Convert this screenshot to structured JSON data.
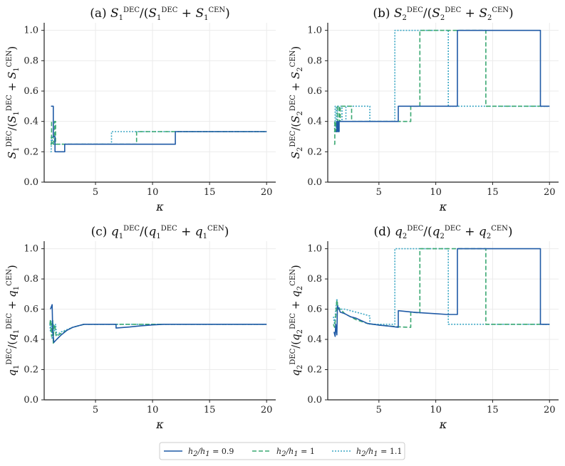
{
  "chart_data": [
    {
      "type": "line",
      "title": "(a) S1DEC/(S1DEC + S1CEN)",
      "title_parts": {
        "prefix": "(a) ",
        "sym": "S",
        "idx": "1"
      },
      "xlabel": "κ",
      "ylabel_sym": "S",
      "ylabel_idx": "1",
      "xlim": [
        0.5,
        20.8
      ],
      "ylim": [
        0,
        1.05
      ],
      "xticks": [
        5,
        10,
        15,
        20
      ],
      "yticks": [
        0.0,
        0.2,
        0.4,
        0.6,
        0.8,
        1.0
      ],
      "series": [
        {
          "name": "h2/h1 = 0.9",
          "points": [
            [
              1.1,
              0.5
            ],
            [
              1.3,
              0.5
            ],
            [
              1.3,
              0.3
            ],
            [
              1.45,
              0.3
            ],
            [
              1.45,
              0.2
            ],
            [
              2.3,
              0.2
            ],
            [
              2.3,
              0.25
            ],
            [
              12,
              0.25
            ],
            [
              12,
              0.333
            ],
            [
              20,
              0.333
            ]
          ]
        },
        {
          "name": "h2/h1 = 1",
          "points": [
            [
              1.05,
              0.25
            ],
            [
              1.15,
              0.25
            ],
            [
              1.15,
              0.4
            ],
            [
              1.3,
              0.4
            ],
            [
              1.3,
              0.25
            ],
            [
              1.42,
              0.25
            ],
            [
              1.42,
              0.4
            ],
            [
              1.5,
              0.4
            ],
            [
              1.5,
              0.25
            ],
            [
              8.6,
              0.25
            ],
            [
              8.6,
              0.333
            ],
            [
              20,
              0.333
            ]
          ]
        },
        {
          "name": "h2/h1 = 1.1",
          "points": [
            [
              1.05,
              0.2
            ],
            [
              1.12,
              0.2
            ],
            [
              1.12,
              0.3
            ],
            [
              1.22,
              0.3
            ],
            [
              1.22,
              0.25
            ],
            [
              6.4,
              0.25
            ],
            [
              6.4,
              0.333
            ],
            [
              20,
              0.333
            ]
          ]
        }
      ]
    },
    {
      "type": "line",
      "title": "(b) S2DEC/(S2DEC + S2CEN)",
      "title_parts": {
        "prefix": "(b) ",
        "sym": "S",
        "idx": "2"
      },
      "xlabel": "κ",
      "ylabel_sym": "S",
      "ylabel_idx": "2",
      "xlim": [
        0.5,
        20.8
      ],
      "ylim": [
        0,
        1.05
      ],
      "xticks": [
        5,
        10,
        15,
        20
      ],
      "yticks": [
        0.0,
        0.2,
        0.4,
        0.6,
        0.8,
        1.0
      ],
      "series": [
        {
          "name": "h2/h1 = 0.9",
          "points": [
            [
              1.2,
              0.333
            ],
            [
              1.3,
              0.333
            ],
            [
              1.3,
              0.4
            ],
            [
              1.4,
              0.4
            ],
            [
              1.4,
              0.333
            ],
            [
              1.5,
              0.333
            ],
            [
              1.5,
              0.4
            ],
            [
              6.7,
              0.4
            ],
            [
              6.7,
              0.5
            ],
            [
              11.9,
              0.5
            ],
            [
              11.9,
              1.0
            ],
            [
              19.2,
              1.0
            ],
            [
              19.2,
              0.5
            ],
            [
              20,
              0.5
            ]
          ]
        },
        {
          "name": "h2/h1 = 1",
          "points": [
            [
              1.05,
              0.25
            ],
            [
              1.12,
              0.25
            ],
            [
              1.12,
              0.4
            ],
            [
              1.2,
              0.4
            ],
            [
              1.2,
              0.333
            ],
            [
              1.35,
              0.333
            ],
            [
              1.35,
              0.5
            ],
            [
              1.5,
              0.5
            ],
            [
              1.5,
              0.4
            ],
            [
              1.6,
              0.4
            ],
            [
              1.6,
              0.5
            ],
            [
              2.6,
              0.5
            ],
            [
              2.6,
              0.4
            ],
            [
              7.8,
              0.4
            ],
            [
              7.8,
              0.5
            ],
            [
              8.6,
              0.5
            ],
            [
              8.6,
              1.0
            ],
            [
              14.4,
              1.0
            ],
            [
              14.4,
              0.5
            ],
            [
              20,
              0.5
            ]
          ]
        },
        {
          "name": "h2/h1 = 1.1",
          "points": [
            [
              1.05,
              0.333
            ],
            [
              1.1,
              0.333
            ],
            [
              1.1,
              0.4
            ],
            [
              1.15,
              0.4
            ],
            [
              1.15,
              0.5
            ],
            [
              1.25,
              0.5
            ],
            [
              1.25,
              0.333
            ],
            [
              1.35,
              0.333
            ],
            [
              1.35,
              0.5
            ],
            [
              1.75,
              0.5
            ],
            [
              1.75,
              0.4
            ],
            [
              2.1,
              0.4
            ],
            [
              2.1,
              0.5
            ],
            [
              4.2,
              0.5
            ],
            [
              4.2,
              0.4
            ],
            [
              6.4,
              0.4
            ],
            [
              6.4,
              1.0
            ],
            [
              11.1,
              1.0
            ],
            [
              11.1,
              0.5
            ],
            [
              20,
              0.5
            ]
          ]
        }
      ]
    },
    {
      "type": "line",
      "title": "(c) q1DEC/(q1DEC + q1CEN)",
      "title_parts": {
        "prefix": "(c) ",
        "sym": "q",
        "idx": "1"
      },
      "xlabel": "κ",
      "ylabel_sym": "q",
      "ylabel_idx": "1",
      "xlim": [
        0.5,
        20.8
      ],
      "ylim": [
        0,
        1.05
      ],
      "xticks": [
        5,
        10,
        15,
        20
      ],
      "yticks": [
        0.0,
        0.2,
        0.4,
        0.6,
        0.8,
        1.0
      ],
      "series": [
        {
          "name": "h2/h1 = 0.9",
          "points": [
            [
              1.05,
              0.6
            ],
            [
              1.2,
              0.63
            ],
            [
              1.25,
              0.45
            ],
            [
              1.35,
              0.38
            ],
            [
              1.6,
              0.4
            ],
            [
              2,
              0.43
            ],
            [
              2.5,
              0.46
            ],
            [
              3,
              0.48
            ],
            [
              3.5,
              0.49
            ],
            [
              4,
              0.5
            ],
            [
              6.8,
              0.5
            ],
            [
              6.8,
              0.475
            ],
            [
              8,
              0.482
            ],
            [
              9,
              0.49
            ],
            [
              10,
              0.496
            ],
            [
              11,
              0.5
            ],
            [
              20,
              0.5
            ]
          ]
        },
        {
          "name": "h2/h1 = 1",
          "points": [
            [
              1.0,
              0.5
            ],
            [
              1.05,
              0.53
            ],
            [
              1.1,
              0.5
            ],
            [
              1.15,
              0.42
            ],
            [
              1.2,
              0.5
            ],
            [
              1.25,
              0.53
            ],
            [
              1.3,
              0.37
            ],
            [
              1.35,
              0.5
            ],
            [
              1.45,
              0.48
            ],
            [
              1.55,
              0.42
            ],
            [
              2,
              0.44
            ],
            [
              2.5,
              0.46
            ],
            [
              3,
              0.48
            ],
            [
              4,
              0.5
            ],
            [
              20,
              0.5
            ]
          ]
        },
        {
          "name": "h2/h1 = 1.1",
          "points": [
            [
              1.0,
              0.5
            ],
            [
              1.05,
              0.45
            ],
            [
              1.1,
              0.52
            ],
            [
              1.15,
              0.47
            ],
            [
              1.2,
              0.4
            ],
            [
              1.3,
              0.5
            ],
            [
              1.4,
              0.45
            ],
            [
              1.5,
              0.5
            ],
            [
              1.6,
              0.43
            ],
            [
              2,
              0.45
            ],
            [
              3,
              0.48
            ],
            [
              4,
              0.5
            ],
            [
              20,
              0.5
            ]
          ]
        }
      ]
    },
    {
      "type": "line",
      "title": "(d) q2DEC/(q2DEC + q2CEN)",
      "title_parts": {
        "prefix": "(d) ",
        "sym": "q",
        "idx": "2"
      },
      "xlabel": "κ",
      "ylabel_sym": "q",
      "ylabel_idx": "2",
      "xlim": [
        0.5,
        20.8
      ],
      "ylim": [
        0,
        1.05
      ],
      "xticks": [
        5,
        10,
        15,
        20
      ],
      "yticks": [
        0.0,
        0.2,
        0.4,
        0.6,
        0.8,
        1.0
      ],
      "series": [
        {
          "name": "h2/h1 = 0.9",
          "points": [
            [
              1.05,
              0.45
            ],
            [
              1.15,
              0.42
            ],
            [
              1.2,
              0.5
            ],
            [
              1.3,
              0.43
            ],
            [
              1.35,
              0.62
            ],
            [
              1.5,
              0.6
            ],
            [
              1.6,
              0.58
            ],
            [
              2,
              0.57
            ],
            [
              2.5,
              0.55
            ],
            [
              3,
              0.54
            ],
            [
              4,
              0.505
            ],
            [
              5,
              0.495
            ],
            [
              6,
              0.487
            ],
            [
              6.7,
              0.48
            ],
            [
              6.7,
              0.59
            ],
            [
              8,
              0.58
            ],
            [
              9,
              0.575
            ],
            [
              10,
              0.57
            ],
            [
              11,
              0.565
            ],
            [
              11.9,
              0.565
            ],
            [
              11.9,
              1.0
            ],
            [
              19.2,
              1.0
            ],
            [
              19.2,
              0.5
            ],
            [
              20,
              0.5
            ]
          ]
        },
        {
          "name": "h2/h1 = 1",
          "points": [
            [
              1.0,
              0.5
            ],
            [
              1.1,
              0.48
            ],
            [
              1.2,
              0.55
            ],
            [
              1.3,
              0.66
            ],
            [
              1.4,
              0.6
            ],
            [
              1.6,
              0.6
            ],
            [
              2,
              0.57
            ],
            [
              2.5,
              0.55
            ],
            [
              3,
              0.53
            ],
            [
              4,
              0.505
            ],
            [
              5,
              0.495
            ],
            [
              6,
              0.488
            ],
            [
              7,
              0.482
            ],
            [
              7.8,
              0.48
            ],
            [
              7.8,
              0.58
            ],
            [
              8.6,
              0.575
            ],
            [
              8.6,
              1.0
            ],
            [
              14.4,
              1.0
            ],
            [
              14.4,
              0.5
            ],
            [
              20,
              0.5
            ]
          ]
        },
        {
          "name": "h2/h1 = 1.1",
          "points": [
            [
              1.0,
              0.55
            ],
            [
              1.1,
              0.5
            ],
            [
              1.2,
              0.6
            ],
            [
              1.3,
              0.67
            ],
            [
              1.4,
              0.62
            ],
            [
              1.6,
              0.6
            ],
            [
              2,
              0.6
            ],
            [
              2.5,
              0.59
            ],
            [
              3,
              0.58
            ],
            [
              3.5,
              0.57
            ],
            [
              4.2,
              0.555
            ],
            [
              4.2,
              0.5
            ],
            [
              6.4,
              0.5
            ],
            [
              6.4,
              1.0
            ],
            [
              11.1,
              1.0
            ],
            [
              11.1,
              0.5
            ],
            [
              20,
              0.5
            ]
          ]
        }
      ]
    }
  ],
  "legend": {
    "entries": [
      {
        "label": "h2/h1 = 0.9",
        "label_parts": [
          "h",
          "2",
          "/h",
          "1",
          " = 0.9"
        ],
        "color": "#1f5aa6",
        "dash": "solid"
      },
      {
        "label": "h2/h1 = 1",
        "label_parts": [
          "h",
          "2",
          "/h",
          "1",
          " = 1"
        ],
        "color": "#3aa872",
        "dash": "dashed"
      },
      {
        "label": "h2/h1 = 1.1",
        "label_parts": [
          "h",
          "2",
          "/h",
          "1",
          " = 1.1"
        ],
        "color": "#3aa6c4",
        "dash": "dotted"
      }
    ],
    "placement": "bottom-center"
  },
  "labels": {
    "dec": "DEC",
    "cen": "CEN",
    "kappa": "κ"
  }
}
